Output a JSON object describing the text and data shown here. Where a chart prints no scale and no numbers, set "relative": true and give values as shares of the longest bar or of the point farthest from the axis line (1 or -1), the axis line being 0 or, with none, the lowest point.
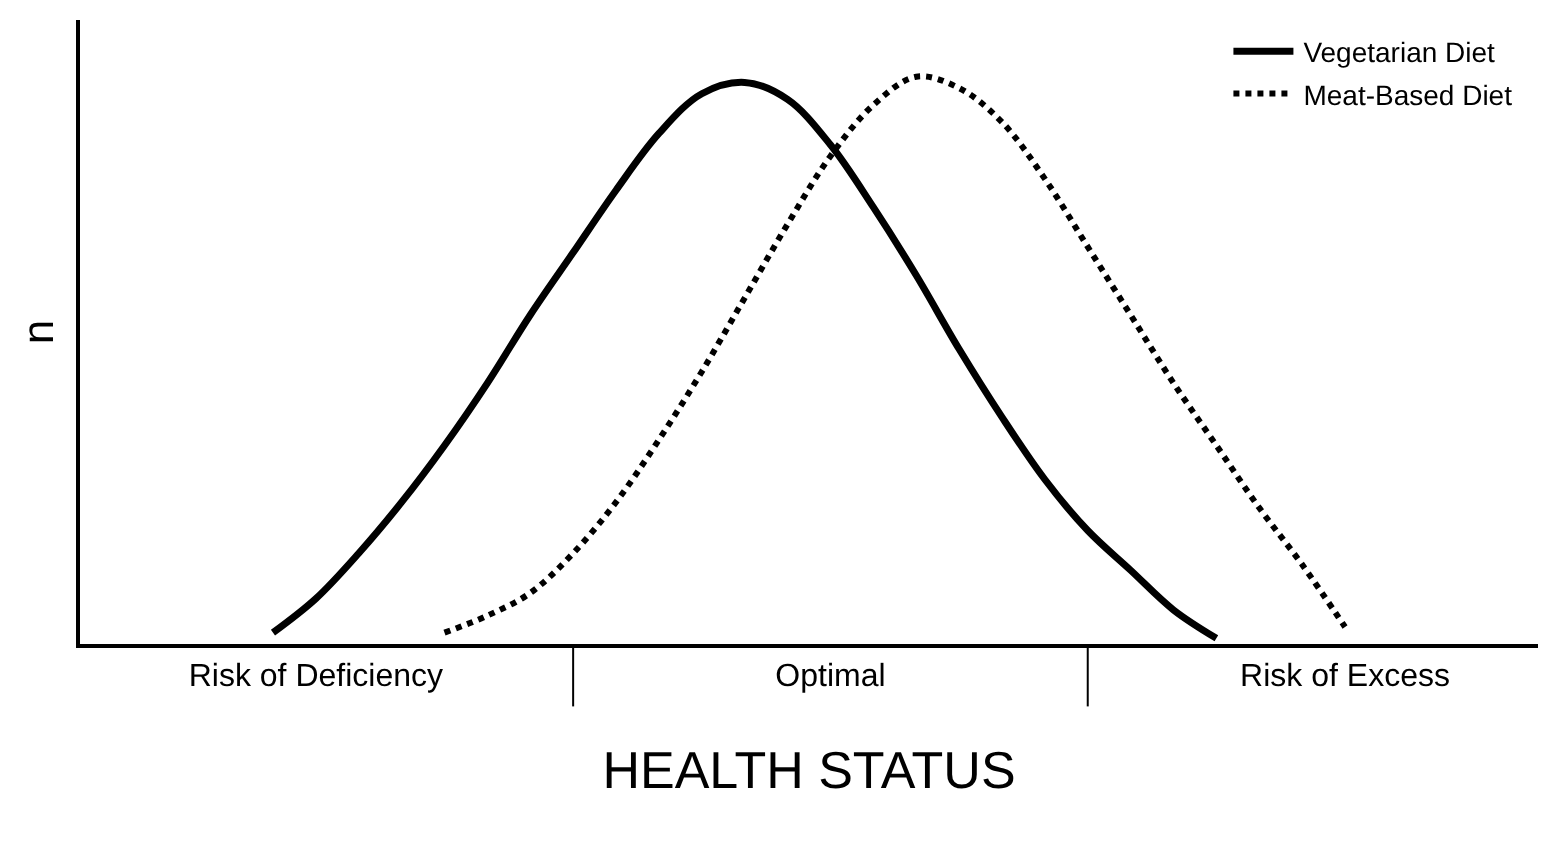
{
  "chart_data": {
    "type": "line",
    "relative": true,
    "xlabel": "HEALTH STATUS",
    "ylabel": "n",
    "categories": [
      null,
      null,
      null,
      null,
      null,
      "Risk of Deficiency",
      null,
      null,
      null,
      null,
      null,
      null,
      null,
      null,
      null,
      null,
      null,
      "Optimal",
      null,
      null,
      null,
      null,
      null,
      null,
      null,
      null,
      null,
      null,
      null,
      "Risk of Excess",
      null,
      null,
      null,
      null
    ],
    "series": [
      {
        "name": "Vegetarian Diet",
        "color": "#000000",
        "line_style": "solid",
        "values": [
          null,
          null,
          null,
          null,
          0.02,
          0.08,
          0.16,
          0.25,
          0.35,
          0.46,
          0.58,
          0.69,
          0.8,
          0.9,
          0.97,
          0.99,
          0.96,
          0.88,
          0.77,
          0.65,
          0.52,
          0.4,
          0.29,
          0.2,
          0.13,
          0.06,
          0.01,
          null,
          null,
          null,
          null,
          null,
          null,
          null
        ]
      },
      {
        "name": "Meat-Based Diet",
        "color": "#000000",
        "line_style": "dotted",
        "values": [
          null,
          null,
          null,
          null,
          null,
          null,
          null,
          null,
          0.02,
          0.05,
          0.09,
          0.16,
          0.25,
          0.36,
          0.48,
          0.61,
          0.74,
          0.86,
          0.95,
          1.0,
          0.98,
          0.92,
          0.82,
          0.7,
          0.58,
          0.46,
          0.35,
          0.24,
          0.14,
          0.03,
          null,
          null,
          null,
          null
        ]
      }
    ],
    "legend": "top right"
  }
}
